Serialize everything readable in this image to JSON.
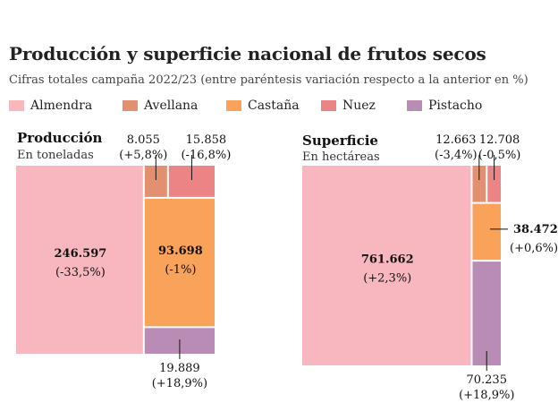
{
  "title": "Producción y superficie nacional de frutos secos",
  "subtitle": "Cifras totales campaña 2022/23 (entre paréntesis variación respecto a la anterior en %)",
  "legend": [
    {
      "label": "Almendra",
      "color": "#f8b6bf"
    },
    {
      "label": "Avellana",
      "color": "#e2906f"
    },
    {
      "label": "Castaña",
      "color": "#f8a25a"
    },
    {
      "label": "Nuez",
      "color": "#ec8485"
    },
    {
      "label": "Pistacho",
      "color": "#b98cb6"
    }
  ],
  "chart_data": [
    {
      "type": "treemap",
      "title": "Producción",
      "subtitle": "En toneladas",
      "items": [
        {
          "name": "Almendra",
          "value": 246597,
          "label": "246.597",
          "change": "(-33,5%)"
        },
        {
          "name": "Avellana",
          "value": 8055,
          "label": "8.055",
          "change": "(+5,8%)"
        },
        {
          "name": "Nuez",
          "value": 15858,
          "label": "15.858",
          "change": "(-16,8%)"
        },
        {
          "name": "Castaña",
          "value": 93698,
          "label": "93.698",
          "change": "(-1%)"
        },
        {
          "name": "Pistacho",
          "value": 19889,
          "label": "19.889",
          "change": "(+18,9%)"
        }
      ]
    },
    {
      "type": "treemap",
      "title": "Superficie",
      "subtitle": "En hectáreas",
      "items": [
        {
          "name": "Almendra",
          "value": 761662,
          "label": "761.662",
          "change": "(+2,3%)"
        },
        {
          "name": "Avellana",
          "value": 12663,
          "label": "12.663",
          "change": "(-3,4%)"
        },
        {
          "name": "Nuez",
          "value": 12708,
          "label": "12.708",
          "change": "(-0,5%)"
        },
        {
          "name": "Castaña",
          "value": 38472,
          "label": "38.472",
          "change": "(+0,6%)"
        },
        {
          "name": "Pistacho",
          "value": 70235,
          "label": "70.235",
          "change": "(+18,9%)"
        }
      ]
    }
  ]
}
